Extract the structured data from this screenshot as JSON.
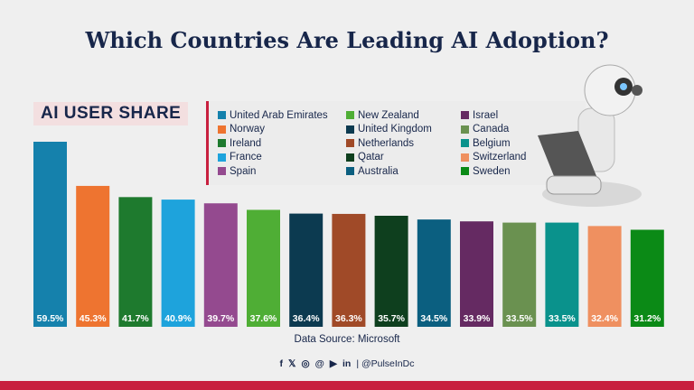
{
  "title": "Which Countries Are Leading AI Adoption?",
  "chart_data": {
    "type": "bar",
    "title": "AI USER SHARE",
    "categories": [
      "United Arab Emirates",
      "Norway",
      "Ireland",
      "France",
      "Spain",
      "New Zealand",
      "United Kingdom",
      "Netherlands",
      "Qatar",
      "Australia",
      "Israel",
      "Canada",
      "Belgium",
      "Switzerland",
      "Sweden"
    ],
    "values": [
      59.5,
      45.3,
      41.7,
      40.9,
      39.7,
      37.6,
      36.4,
      36.3,
      35.7,
      34.5,
      33.9,
      33.5,
      33.5,
      32.4,
      31.2
    ],
    "labels": [
      "59.5%",
      "45.3%",
      "41.7%",
      "40.9%",
      "39.7%",
      "37.6%",
      "36.4%",
      "36.3%",
      "35.7%",
      "34.5%",
      "33.9%",
      "33.5%",
      "33.5%",
      "32.4%",
      "31.2%"
    ],
    "colors": [
      "#1581ac",
      "#ee7430",
      "#1e7a2e",
      "#1ea3dc",
      "#944a8f",
      "#4fae35",
      "#0c3a50",
      "#a04a28",
      "#0e3f1e",
      "#0b5f80",
      "#652a62",
      "#6a9150",
      "#0a928c",
      "#ef9060",
      "#0b8a16"
    ],
    "ylim": [
      0,
      60
    ],
    "legend": "top"
  },
  "source": "Data Source: Microsoft",
  "social": {
    "icons": [
      "facebook-icon",
      "x-icon",
      "instagram-icon",
      "threads-icon",
      "youtube-icon",
      "linkedin-icon"
    ],
    "glyphs": [
      "f",
      "𝕏",
      "◎",
      "@",
      "▶",
      "in"
    ],
    "handle": "| @PulseInDc"
  },
  "accent": "#c8203f"
}
